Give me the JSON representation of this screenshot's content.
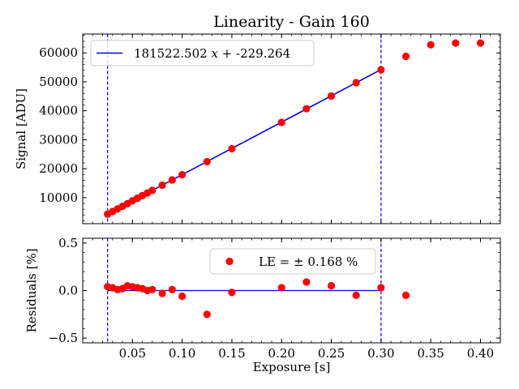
{
  "chart_data": [
    {
      "panel": "top",
      "type": "scatter",
      "title": "Linearity - Gain 160",
      "xlabel": "",
      "ylabel": "Signal [ADU]",
      "xlim": [
        0.0,
        0.42
      ],
      "ylim": [
        1000,
        66500
      ],
      "yticks": [
        10000,
        20000,
        30000,
        40000,
        50000,
        60000
      ],
      "ytick_labels": [
        "10000",
        "20000",
        "30000",
        "40000",
        "50000",
        "60000"
      ],
      "grid": false,
      "legend": {
        "location": "upper-left",
        "entries": [
          "181522.502 x + -229.264"
        ]
      },
      "fit_line": {
        "slope": 181522.502,
        "intercept": -229.264,
        "x_range": [
          0.025,
          0.3
        ],
        "color": "#0000ff"
      },
      "vertical_lines": [
        0.025,
        0.3
      ],
      "marker_color": "#ff0000",
      "points": [
        [
          0.025,
          4300
        ],
        [
          0.03,
          5200
        ],
        [
          0.035,
          6100
        ],
        [
          0.04,
          7000
        ],
        [
          0.045,
          7900
        ],
        [
          0.05,
          8900
        ],
        [
          0.055,
          9800
        ],
        [
          0.06,
          10700
        ],
        [
          0.065,
          11600
        ],
        [
          0.07,
          12500
        ],
        [
          0.08,
          14300
        ],
        [
          0.09,
          16100
        ],
        [
          0.1,
          17900
        ],
        [
          0.125,
          22400
        ],
        [
          0.15,
          26900
        ],
        [
          0.2,
          36000
        ],
        [
          0.225,
          40700
        ],
        [
          0.25,
          45100
        ],
        [
          0.275,
          49700
        ],
        [
          0.3,
          54200
        ],
        [
          0.325,
          58800
        ],
        [
          0.35,
          62800
        ],
        [
          0.375,
          63400
        ],
        [
          0.4,
          63400
        ]
      ]
    },
    {
      "panel": "bottom",
      "type": "scatter",
      "xlabel": "Exposure [s]",
      "ylabel": "Residuals [%]",
      "xlim": [
        0.0,
        0.42
      ],
      "ylim": [
        -0.55,
        0.55
      ],
      "xticks": [
        0.05,
        0.1,
        0.15,
        0.2,
        0.25,
        0.3,
        0.35,
        0.4
      ],
      "xtick_labels": [
        "0.05",
        "0.10",
        "0.15",
        "0.20",
        "0.25",
        "0.30",
        "0.35",
        "0.40"
      ],
      "yticks": [
        -0.5,
        0.0,
        0.5
      ],
      "ytick_labels": [
        "−0.5",
        "0.0",
        "0.5"
      ],
      "grid": false,
      "legend": {
        "location": "upper-center",
        "entries": [
          "LE = ± 0.168 %"
        ]
      },
      "zero_line": {
        "y": 0.0,
        "x_range": [
          0.025,
          0.3
        ],
        "color": "#0000ff"
      },
      "vertical_lines": [
        0.025,
        0.3
      ],
      "marker_color": "#ff0000",
      "points": [
        [
          0.025,
          0.04
        ],
        [
          0.03,
          0.03
        ],
        [
          0.035,
          0.01
        ],
        [
          0.04,
          0.02
        ],
        [
          0.045,
          0.05
        ],
        [
          0.05,
          0.04
        ],
        [
          0.055,
          0.03
        ],
        [
          0.06,
          0.02
        ],
        [
          0.065,
          0.0
        ],
        [
          0.07,
          0.01
        ],
        [
          0.08,
          -0.03
        ],
        [
          0.09,
          0.01
        ],
        [
          0.1,
          -0.06
        ],
        [
          0.125,
          -0.25
        ],
        [
          0.15,
          -0.02
        ],
        [
          0.2,
          0.03
        ],
        [
          0.225,
          0.09
        ],
        [
          0.25,
          0.05
        ],
        [
          0.275,
          -0.05
        ],
        [
          0.3,
          0.03
        ],
        [
          0.325,
          -0.05
        ]
      ]
    }
  ]
}
